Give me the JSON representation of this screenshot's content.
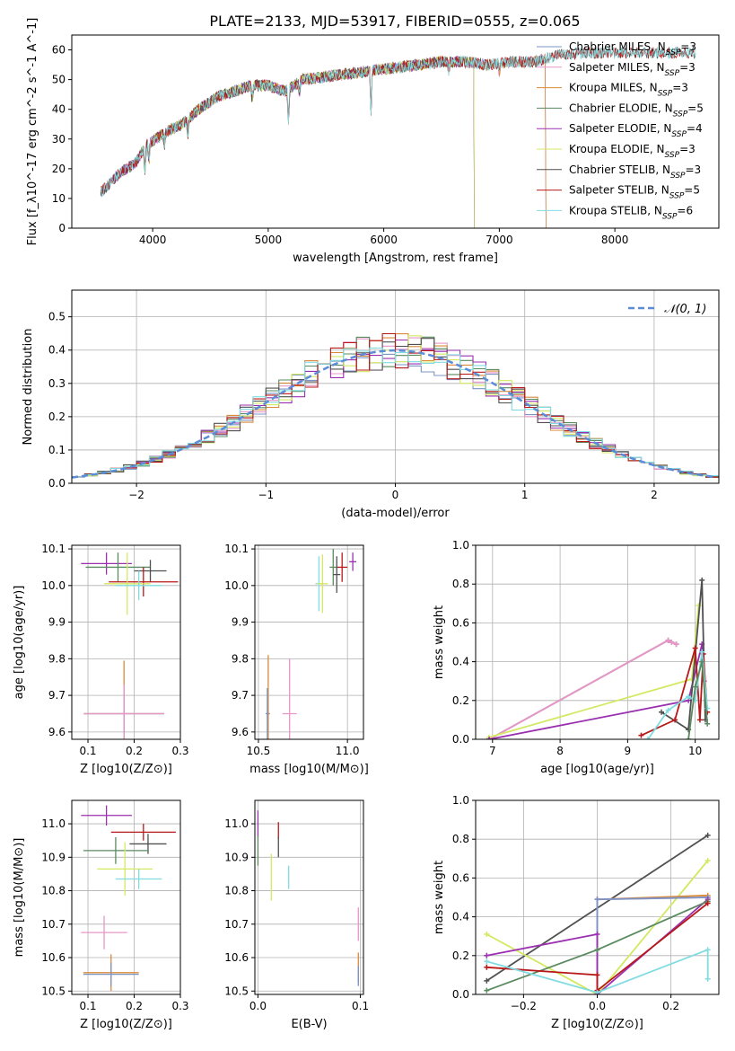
{
  "figure_title": "PLATE=2133, MJD=53917, FIBERID=0555, z=0.065",
  "colors": {
    "Chabrier MILES": "#7a94c4",
    "Salpeter MILES": "#e895c8",
    "Kroupa MILES": "#d98a3a",
    "Chabrier ELODIE": "#5a8a60",
    "Salpeter ELODIE": "#9a30b0",
    "Kroupa ELODIE": "#d4e860",
    "Chabrier STELIB": "#505050",
    "Salpeter STELIB": "#b81818",
    "Kroupa STELIB": "#80dce0",
    "normal_curve": "#5a8cd8"
  },
  "chart_data": [
    {
      "id": "spectrum",
      "type": "line",
      "xlabel": "wavelength [Angstrom, rest frame]",
      "ylabel": "Flux [f_λ10^-17 erg cm^-2 s^-1 A^-1]",
      "xlim": [
        3300,
        8900
      ],
      "ylim": [
        0,
        65
      ],
      "xticks": [
        4000,
        5000,
        6000,
        7000,
        8000
      ],
      "yticks": [
        0,
        10,
        20,
        30,
        40,
        50,
        60
      ],
      "grid": false,
      "legend_position": "right",
      "legend": [
        {
          "model": "Chabrier MILES",
          "n": "3"
        },
        {
          "model": "Salpeter MILES",
          "n": "3"
        },
        {
          "model": "Kroupa MILES",
          "n": "3"
        },
        {
          "model": "Chabrier ELODIE",
          "n": "5"
        },
        {
          "model": "Salpeter ELODIE",
          "n": "4"
        },
        {
          "model": "Kroupa ELODIE",
          "n": "3"
        },
        {
          "model": "Chabrier STELIB",
          "n": "3"
        },
        {
          "model": "Salpeter STELIB",
          "n": "5"
        },
        {
          "model": "Kroupa STELIB",
          "n": "6"
        }
      ],
      "continuum": [
        [
          3550,
          12
        ],
        [
          3700,
          18
        ],
        [
          3850,
          22
        ],
        [
          3950,
          28
        ],
        [
          4100,
          32
        ],
        [
          4250,
          35
        ],
        [
          4400,
          40
        ],
        [
          4550,
          44
        ],
        [
          4700,
          46
        ],
        [
          4850,
          48
        ],
        [
          5000,
          48
        ],
        [
          5150,
          46
        ],
        [
          5300,
          50
        ],
        [
          5500,
          51
        ],
        [
          5700,
          52
        ],
        [
          5900,
          53
        ],
        [
          6100,
          54
        ],
        [
          6300,
          55
        ],
        [
          6500,
          56
        ],
        [
          6700,
          56
        ],
        [
          6900,
          55
        ],
        [
          7100,
          56
        ],
        [
          7300,
          56
        ],
        [
          7500,
          58
        ],
        [
          7700,
          59
        ],
        [
          7900,
          59
        ],
        [
          8100,
          59
        ]
      ],
      "line_extents": {
        "Chabrier MILES": [
          3550,
          7400
        ],
        "Salpeter MILES": [
          3550,
          7400
        ],
        "Kroupa MILES": [
          3550,
          7400
        ],
        "Chabrier ELODIE": [
          3550,
          6780
        ],
        "Salpeter ELODIE": [
          3550,
          6780
        ],
        "Kroupa ELODIE": [
          3900,
          6780
        ],
        "Chabrier STELIB": [
          3550,
          8700
        ],
        "Salpeter STELIB": [
          3550,
          8700
        ],
        "Kroupa STELIB": [
          3550,
          8700
        ]
      },
      "dips": [
        [
          3933,
          8
        ],
        [
          3968,
          6
        ],
        [
          4102,
          4
        ],
        [
          4304,
          6
        ],
        [
          4861,
          5
        ],
        [
          5175,
          12
        ],
        [
          5270,
          4
        ],
        [
          5890,
          14
        ],
        [
          6563,
          3
        ],
        [
          7000,
          3
        ]
      ]
    },
    {
      "id": "residuals",
      "type": "histogram",
      "xlabel": "(data-model)/error",
      "ylabel": "Normed distribution",
      "xlim": [
        -2.5,
        2.5
      ],
      "ylim": [
        0,
        0.58
      ],
      "xticks": [
        -2,
        -1,
        0,
        1,
        2
      ],
      "yticks": [
        0.0,
        0.1,
        0.2,
        0.3,
        0.4,
        0.5
      ],
      "grid": true,
      "legend_position": "top-right",
      "legend_label": "𝒩(0, 1)",
      "normal_mean": 0,
      "normal_sigma": 1,
      "bin_width": 0.1
    },
    {
      "id": "age_vs_Z",
      "type": "errorbar",
      "xlabel": "Z [log10(Z/Z⊙)]",
      "ylabel": "age  [log10(age/yr)]",
      "xlim": [
        0.065,
        0.3
      ],
      "ylim": [
        9.58,
        10.11
      ],
      "xticks": [
        0.1,
        0.2,
        0.3
      ],
      "yticks": [
        9.6,
        9.7,
        9.8,
        9.9,
        10.0,
        10.1
      ],
      "grid": true,
      "points": [
        {
          "model": "Salpeter ELODIE",
          "x": 0.14,
          "xerr": 0.055,
          "y": 10.06,
          "yerr": 0.03
        },
        {
          "model": "Chabrier ELODIE",
          "x": 0.165,
          "xerr": 0.07,
          "y": 10.05,
          "yerr": 0.04
        },
        {
          "model": "Chabrier STELIB",
          "x": 0.235,
          "xerr": 0.035,
          "y": 10.04,
          "yerr": 0.03
        },
        {
          "model": "Salpeter STELIB",
          "x": 0.22,
          "xerr": 0.075,
          "y": 10.01,
          "yerr": 0.04
        },
        {
          "model": "Kroupa ELODIE",
          "x": 0.185,
          "xerr": 0.05,
          "y": 10.005,
          "yerr": 0.085
        },
        {
          "model": "Kroupa STELIB",
          "x": 0.21,
          "xerr": 0.05,
          "y": 10.0,
          "yerr": 0.04
        },
        {
          "model": "Kroupa MILES",
          "x": 0.178,
          "xerr": 0.087,
          "y": 9.65,
          "yerr": 0.145
        },
        {
          "model": "Chabrier MILES",
          "x": 0.178,
          "xerr": 0.087,
          "y": 9.65,
          "yerr": 0.06
        },
        {
          "model": "Salpeter MILES",
          "x": 0.178,
          "xerr": 0.087,
          "y": 9.65,
          "yerr": 0.08
        }
      ]
    },
    {
      "id": "age_vs_mass",
      "type": "errorbar",
      "xlabel": "mass [log10(M/M⊙)]",
      "ylabel": "",
      "xlim": [
        10.48,
        11.09
      ],
      "ylim": [
        9.58,
        10.11
      ],
      "xticks": [
        10.5,
        11.0
      ],
      "yticks": [
        9.6,
        9.7,
        9.8,
        9.9,
        10.0,
        10.1
      ],
      "grid": true,
      "points": [
        {
          "model": "Salpeter ELODIE",
          "x": 11.03,
          "xerr": 0.02,
          "y": 10.065,
          "yerr": 0.025
        },
        {
          "model": "Salpeter STELIB",
          "x": 10.97,
          "xerr": 0.03,
          "y": 10.05,
          "yerr": 0.04
        },
        {
          "model": "Chabrier ELODIE",
          "x": 10.92,
          "xerr": 0.02,
          "y": 10.05,
          "yerr": 0.05
        },
        {
          "model": "Chabrier STELIB",
          "x": 10.94,
          "xerr": 0.02,
          "y": 10.03,
          "yerr": 0.05
        },
        {
          "model": "Kroupa STELIB",
          "x": 10.84,
          "xerr": 0.02,
          "y": 10.005,
          "yerr": 0.075
        },
        {
          "model": "Kroupa ELODIE",
          "x": 10.86,
          "xerr": 0.03,
          "y": 10.005,
          "yerr": 0.08
        },
        {
          "model": "Kroupa MILES",
          "x": 10.555,
          "xerr": 0.01,
          "y": 9.65,
          "yerr": 0.16
        },
        {
          "model": "Chabrier MILES",
          "x": 10.55,
          "xerr": 0.01,
          "y": 9.65,
          "yerr": 0.07
        },
        {
          "model": "Salpeter MILES",
          "x": 10.675,
          "xerr": 0.04,
          "y": 9.65,
          "yerr": 0.15
        }
      ]
    },
    {
      "id": "massweight_vs_age",
      "type": "line",
      "xlabel": "age  [log10(age/yr)]",
      "ylabel": "mass weight",
      "xlim": [
        6.75,
        10.35
      ],
      "ylim": [
        0,
        1.0
      ],
      "xticks": [
        7,
        8,
        9,
        10
      ],
      "yticks": [
        0.0,
        0.2,
        0.4,
        0.6,
        0.8,
        1.0
      ],
      "grid": true,
      "series": [
        {
          "model": "Kroupa MILES",
          "points": [
            [
              6.95,
              0.0
            ],
            [
              9.6,
              0.51
            ],
            [
              9.65,
              0.5
            ],
            [
              9.72,
              0.49
            ]
          ]
        },
        {
          "model": "Chabrier MILES",
          "points": [
            [
              6.95,
              0.0
            ],
            [
              9.6,
              0.51
            ],
            [
              9.65,
              0.5
            ],
            [
              9.72,
              0.49
            ]
          ]
        },
        {
          "model": "Salpeter MILES",
          "points": [
            [
              6.95,
              0.0
            ],
            [
              9.6,
              0.51
            ],
            [
              9.65,
              0.5
            ],
            [
              9.72,
              0.49
            ]
          ]
        },
        {
          "model": "Kroupa ELODIE",
          "points": [
            [
              6.95,
              0.01
            ],
            [
              9.95,
              0.31
            ],
            [
              10.05,
              0.69
            ]
          ]
        },
        {
          "model": "Salpeter ELODIE",
          "points": [
            [
              6.95,
              0.0
            ],
            [
              9.9,
              0.2
            ],
            [
              10.1,
              0.49
            ],
            [
              10.13,
              0.3
            ]
          ]
        },
        {
          "model": "Chabrier STELIB",
          "points": [
            [
              9.5,
              0.14
            ],
            [
              9.9,
              0.05
            ],
            [
              10.1,
              0.82
            ],
            [
              10.15,
              0.1
            ]
          ]
        },
        {
          "model": "Salpeter STELIB",
          "points": [
            [
              9.2,
              0.02
            ],
            [
              9.7,
              0.1
            ],
            [
              10.0,
              0.47
            ],
            [
              10.07,
              0.1
            ],
            [
              10.12,
              0.44
            ],
            [
              10.18,
              0.14
            ]
          ]
        },
        {
          "model": "Kroupa STELIB",
          "points": [
            [
              9.3,
              0.0
            ],
            [
              9.6,
              0.15
            ],
            [
              9.9,
              0.22
            ],
            [
              10.0,
              0.2
            ],
            [
              10.1,
              0.45
            ],
            [
              10.18,
              0.16
            ]
          ]
        },
        {
          "model": "Chabrier ELODIE",
          "points": [
            [
              9.9,
              0.0
            ],
            [
              10.0,
              0.27
            ],
            [
              10.1,
              0.4
            ],
            [
              10.18,
              0.08
            ]
          ]
        }
      ]
    },
    {
      "id": "mass_vs_Z",
      "type": "errorbar",
      "xlabel": "Z [log10(Z/Z⊙)]",
      "ylabel": "mass [log10(M/M⊙)]",
      "xlim": [
        0.065,
        0.3
      ],
      "ylim": [
        10.49,
        11.07
      ],
      "xticks": [
        0.1,
        0.2,
        0.3
      ],
      "yticks": [
        10.5,
        10.6,
        10.7,
        10.8,
        10.9,
        11.0
      ],
      "grid": true,
      "points": [
        {
          "model": "Salpeter ELODIE",
          "x": 0.14,
          "xerr": 0.055,
          "y": 11.025,
          "yerr": 0.03
        },
        {
          "model": "Salpeter STELIB",
          "x": 0.22,
          "xerr": 0.07,
          "y": 10.975,
          "yerr": 0.025
        },
        {
          "model": "Chabrier STELIB",
          "x": 0.23,
          "xerr": 0.04,
          "y": 10.94,
          "yerr": 0.03
        },
        {
          "model": "Chabrier ELODIE",
          "x": 0.16,
          "xerr": 0.07,
          "y": 10.92,
          "yerr": 0.04
        },
        {
          "model": "Kroupa ELODIE",
          "x": 0.18,
          "xerr": 0.06,
          "y": 10.865,
          "yerr": 0.08
        },
        {
          "model": "Kroupa STELIB",
          "x": 0.21,
          "xerr": 0.05,
          "y": 10.835,
          "yerr": 0.03
        },
        {
          "model": "Salpeter MILES",
          "x": 0.135,
          "xerr": 0.05,
          "y": 10.675,
          "yerr": 0.05
        },
        {
          "model": "Kroupa MILES",
          "x": 0.15,
          "xerr": 0.06,
          "y": 10.555,
          "yerr": 0.055
        },
        {
          "model": "Chabrier MILES",
          "x": 0.15,
          "xerr": 0.06,
          "y": 10.55,
          "yerr": 0.035
        }
      ]
    },
    {
      "id": "mass_vs_ebv",
      "type": "errorbar",
      "xlabel": "E(B-V)",
      "ylabel": "",
      "xlim": [
        -0.003,
        0.103
      ],
      "ylim": [
        10.49,
        11.07
      ],
      "xticks": [
        0.0,
        0.1
      ],
      "yticks": [
        10.5,
        10.6,
        10.7,
        10.8,
        10.9,
        11.0
      ],
      "grid": true,
      "points": [
        {
          "model": "Salpeter ELODIE",
          "x": 0.0,
          "xerr": 0.0,
          "y": 11.0,
          "yerr": 0.04
        },
        {
          "model": "Chabrier ELODIE",
          "x": 0.0,
          "xerr": 0.0,
          "y": 10.92,
          "yerr": 0.045
        },
        {
          "model": "Salpeter STELIB",
          "x": 0.02,
          "xerr": 0.0,
          "y": 10.98,
          "yerr": 0.025
        },
        {
          "model": "Chabrier STELIB",
          "x": 0.02,
          "xerr": 0.0,
          "y": 10.93,
          "yerr": 0.03
        },
        {
          "model": "Kroupa ELODIE",
          "x": 0.013,
          "xerr": 0.0,
          "y": 10.84,
          "yerr": 0.07
        },
        {
          "model": "Kroupa STELIB",
          "x": 0.03,
          "xerr": 0.0,
          "y": 10.84,
          "yerr": 0.035
        },
        {
          "model": "Salpeter MILES",
          "x": 0.098,
          "xerr": 0.0,
          "y": 10.7,
          "yerr": 0.05
        },
        {
          "model": "Kroupa MILES",
          "x": 0.098,
          "xerr": 0.0,
          "y": 10.57,
          "yerr": 0.045
        },
        {
          "model": "Chabrier MILES",
          "x": 0.098,
          "xerr": 0.0,
          "y": 10.545,
          "yerr": 0.03
        }
      ]
    },
    {
      "id": "massweight_vs_Z",
      "type": "line",
      "xlabel": "Z [log10(Z/Z⊙)]",
      "ylabel": "mass weight",
      "xlim": [
        -0.33,
        0.33
      ],
      "ylim": [
        0,
        1.0
      ],
      "xticks": [
        -0.2,
        0.0,
        0.2
      ],
      "yticks": [
        0.0,
        0.2,
        0.4,
        0.6,
        0.8,
        1.0
      ],
      "grid": true,
      "series": [
        {
          "model": "Chabrier STELIB",
          "points": [
            [
              -0.3,
              0.07
            ],
            [
              0.3,
              0.82
            ]
          ]
        },
        {
          "model": "Kroupa ELODIE",
          "points": [
            [
              -0.3,
              0.31
            ],
            [
              0.0,
              0.0
            ],
            [
              0.3,
              0.69
            ]
          ]
        },
        {
          "model": "Kroupa MILES",
          "points": [
            [
              0.0,
              0.0
            ],
            [
              0.0,
              0.49
            ],
            [
              0.3,
              0.51
            ]
          ]
        },
        {
          "model": "Salpeter MILES",
          "points": [
            [
              0.0,
              0.0
            ],
            [
              0.0,
              0.49
            ],
            [
              0.3,
              0.5
            ]
          ]
        },
        {
          "model": "Chabrier MILES",
          "points": [
            [
              0.0,
              0.0
            ],
            [
              0.0,
              0.49
            ],
            [
              0.3,
              0.5
            ]
          ]
        },
        {
          "model": "Salpeter ELODIE",
          "points": [
            [
              -0.3,
              0.2
            ],
            [
              0.0,
              0.31
            ],
            [
              0.0,
              0.0
            ],
            [
              0.3,
              0.49
            ]
          ]
        },
        {
          "model": "Chabrier ELODIE",
          "points": [
            [
              -0.3,
              0.02
            ],
            [
              0.0,
              0.23
            ],
            [
              0.3,
              0.48
            ]
          ]
        },
        {
          "model": "Salpeter STELIB",
          "points": [
            [
              -0.3,
              0.14
            ],
            [
              0.0,
              0.1
            ],
            [
              0.0,
              0.02
            ],
            [
              0.3,
              0.47
            ]
          ]
        },
        {
          "model": "Kroupa STELIB",
          "points": [
            [
              -0.3,
              0.17
            ],
            [
              0.0,
              0.01
            ],
            [
              0.3,
              0.23
            ],
            [
              0.3,
              0.08
            ]
          ]
        }
      ]
    }
  ]
}
